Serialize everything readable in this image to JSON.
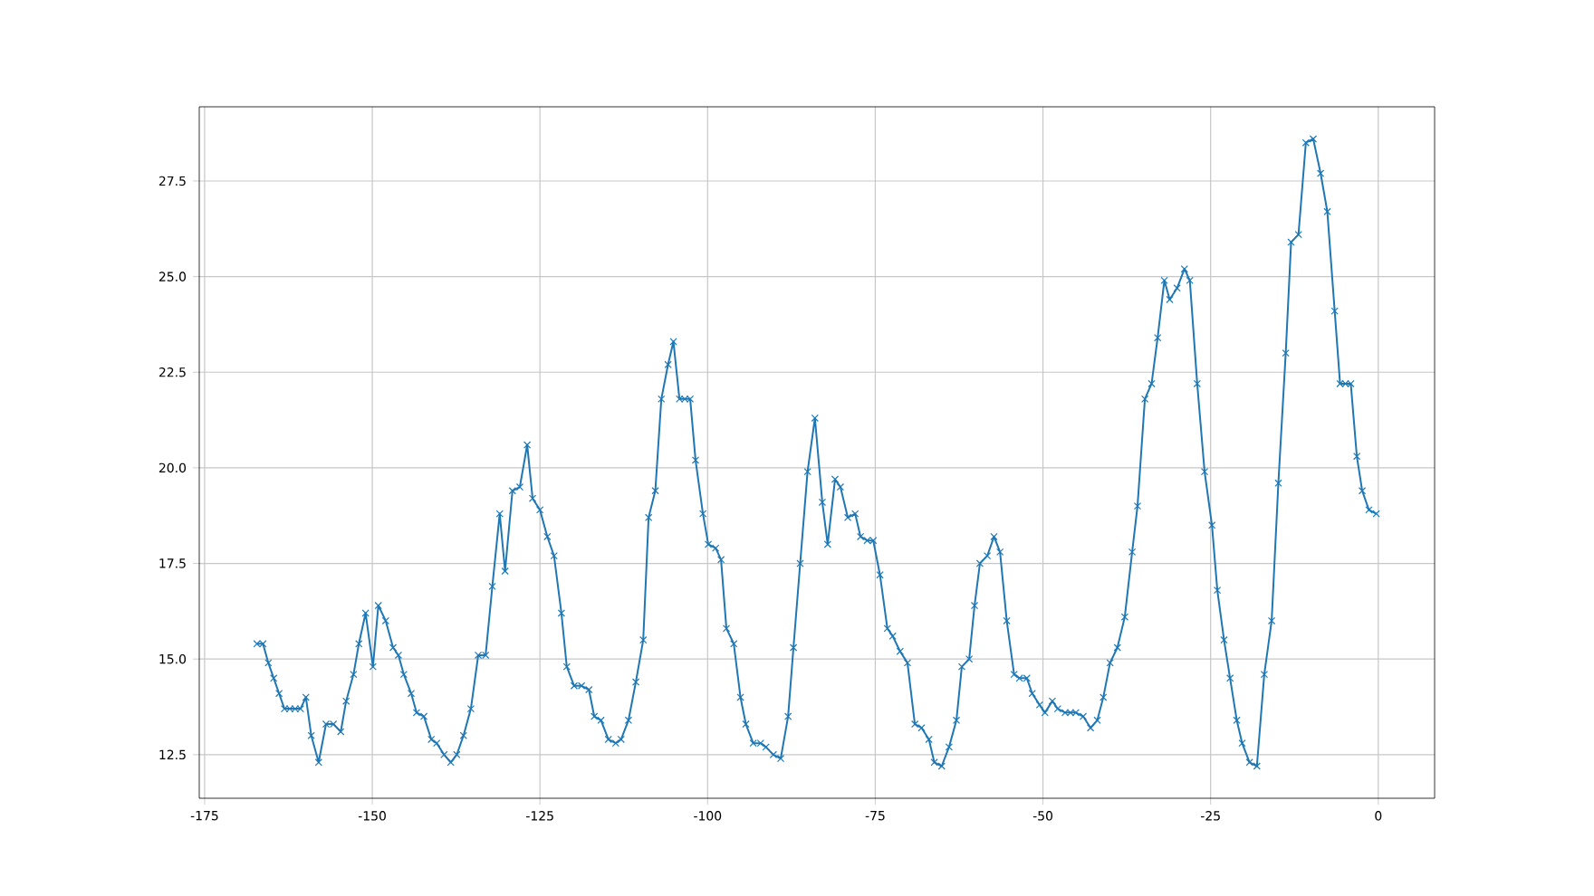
{
  "chart_data": {
    "type": "line",
    "color": "#1f77b4",
    "marker": "cross",
    "grid": true,
    "xlim": [
      -175.8,
      8.4
    ],
    "ylim": [
      11.36,
      29.44
    ],
    "xticks": [
      -175,
      -150,
      -125,
      -100,
      -75,
      -50,
      -25,
      0
    ],
    "yticks": [
      {
        "value": 12.5,
        "label": "12.5"
      },
      {
        "value": 15,
        "label": "15.0"
      },
      {
        "value": 17.5,
        "label": "17.5"
      },
      {
        "value": 20,
        "label": "20.0"
      },
      {
        "value": 22.5,
        "label": "22.5"
      },
      {
        "value": 25,
        "label": "25.0"
      },
      {
        "value": 27.5,
        "label": "27.5"
      }
    ],
    "x": [
      -167.2,
      -166.3,
      -165.5,
      -164.7,
      -163.9,
      -163.1,
      -162.3,
      -161.5,
      -160.7,
      -159.9,
      -159.1,
      -158.0,
      -156.9,
      -155.8,
      -154.7,
      -153.9,
      -152.8,
      -152.0,
      -151.0,
      -149.9,
      -149.1,
      -148.0,
      -146.9,
      -146.1,
      -145.3,
      -144.2,
      -143.4,
      -142.3,
      -141.2,
      -140.4,
      -139.3,
      -138.3,
      -137.4,
      -136.4,
      -135.3,
      -134.2,
      -133.1,
      -132.1,
      -131.0,
      -130.2,
      -129.1,
      -128.0,
      -126.9,
      -126.1,
      -125.0,
      -123.9,
      -122.9,
      -121.8,
      -121.0,
      -119.9,
      -118.8,
      -117.7,
      -116.9,
      -115.9,
      -114.8,
      -113.7,
      -112.9,
      -111.8,
      -110.7,
      -109.6,
      -108.8,
      -107.8,
      -106.9,
      -105.9,
      -105.1,
      -104.2,
      -103.4,
      -102.6,
      -101.8,
      -100.7,
      -99.9,
      -98.8,
      -98.0,
      -97.2,
      -96.1,
      -95.1,
      -94.3,
      -93.2,
      -92.1,
      -91.3,
      -90.2,
      -89.1,
      -88.0,
      -87.2,
      -86.2,
      -85.1,
      -84.0,
      -82.9,
      -82.1,
      -81.0,
      -80.2,
      -79.1,
      -78.0,
      -77.2,
      -76.2,
      -75.3,
      -74.3,
      -73.2,
      -72.4,
      -71.3,
      -70.2,
      -69.1,
      -68.1,
      -67.0,
      -66.2,
      -65.1,
      -64.0,
      -62.9,
      -62.1,
      -61.0,
      -60.2,
      -59.4,
      -58.3,
      -57.3,
      -56.4,
      -55.4,
      -54.3,
      -53.5,
      -52.4,
      -51.6,
      -50.5,
      -49.7,
      -48.6,
      -47.8,
      -46.7,
      -45.9,
      -45.1,
      -44.0,
      -42.9,
      -41.9,
      -41.0,
      -40.0,
      -38.9,
      -37.8,
      -36.7,
      -35.9,
      -34.8,
      -33.8,
      -32.9,
      -31.9,
      -31.1,
      -30.0,
      -28.9,
      -28.1,
      -27.0,
      -25.9,
      -24.8,
      -24.0,
      -23.0,
      -22.1,
      -21.1,
      -20.3,
      -19.2,
      -18.1,
      -17.0,
      -15.9,
      -14.9,
      -13.8,
      -13.0,
      -11.9,
      -10.8,
      -9.7,
      -8.6,
      -7.6,
      -6.5,
      -5.7,
      -4.9,
      -4.1,
      -3.2,
      -2.4,
      -1.4,
      -0.3
    ],
    "values": [
      15.4,
      15.4,
      14.9,
      14.5,
      14.1,
      13.7,
      13.7,
      13.7,
      13.7,
      14.0,
      13.0,
      12.3,
      13.3,
      13.3,
      13.1,
      13.9,
      14.6,
      15.4,
      16.2,
      14.8,
      16.4,
      16.0,
      15.3,
      15.1,
      14.6,
      14.1,
      13.6,
      13.5,
      12.9,
      12.8,
      12.5,
      12.3,
      12.5,
      13.0,
      13.7,
      15.1,
      15.1,
      16.9,
      18.8,
      17.3,
      19.4,
      19.5,
      20.6,
      19.2,
      18.9,
      18.2,
      17.7,
      16.2,
      14.8,
      14.3,
      14.3,
      14.2,
      13.5,
      13.4,
      12.9,
      12.8,
      12.9,
      13.4,
      14.4,
      15.5,
      18.7,
      19.4,
      21.8,
      22.7,
      23.3,
      21.8,
      21.8,
      21.8,
      20.2,
      18.8,
      18.0,
      17.9,
      17.6,
      15.8,
      15.4,
      14.0,
      13.3,
      12.8,
      12.8,
      12.7,
      12.5,
      12.4,
      13.5,
      15.3,
      17.5,
      19.9,
      21.3,
      19.1,
      18.0,
      19.7,
      19.5,
      18.7,
      18.8,
      18.2,
      18.1,
      18.1,
      17.2,
      15.8,
      15.6,
      15.2,
      14.9,
      13.3,
      13.2,
      12.9,
      12.3,
      12.2,
      12.7,
      13.4,
      14.8,
      15.0,
      16.4,
      17.5,
      17.7,
      18.2,
      17.8,
      16.0,
      14.6,
      14.5,
      14.5,
      14.1,
      13.8,
      13.6,
      13.9,
      13.7,
      13.6,
      13.6,
      13.6,
      13.5,
      13.2,
      13.4,
      14.0,
      14.9,
      15.3,
      16.1,
      17.8,
      19.0,
      21.8,
      22.2,
      23.4,
      24.9,
      24.4,
      24.7,
      25.2,
      24.9,
      22.2,
      19.9,
      18.5,
      16.8,
      15.5,
      14.5,
      13.4,
      12.8,
      12.3,
      12.2,
      14.6,
      16.0,
      19.6,
      23.0,
      25.9,
      26.1,
      28.5,
      28.6,
      27.7,
      26.7,
      24.1,
      22.2,
      22.2,
      22.2,
      20.3,
      19.4,
      18.9,
      18.8
    ]
  }
}
